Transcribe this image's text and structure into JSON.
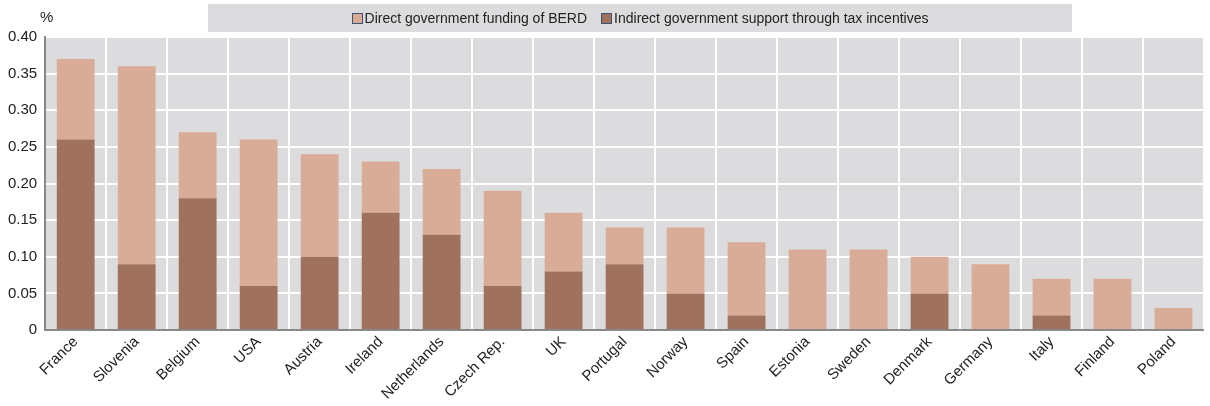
{
  "chart_data": {
    "type": "bar",
    "stacked": true,
    "ylabel": "%",
    "categories": [
      "France",
      "Slovenia",
      "Belgium",
      "USA",
      "Austria",
      "Ireland",
      "Netherlands",
      "Czech Rep.",
      "UK",
      "Portugal",
      "Norway",
      "Spain",
      "Estonia",
      "Sweden",
      "Denmark",
      "Germany",
      "Italy",
      "Finland",
      "Poland"
    ],
    "series": [
      {
        "name": "Indirect government support through tax incentives",
        "color": "#a0725e",
        "values": [
          0.26,
          0.09,
          0.18,
          0.06,
          0.1,
          0.16,
          0.13,
          0.06,
          0.08,
          0.09,
          0.05,
          0.02,
          0,
          0,
          0.05,
          0,
          0.02,
          0,
          0
        ]
      },
      {
        "name": "Direct government funding of BERD",
        "color": "#d9ac98",
        "values": [
          0.11,
          0.27,
          0.09,
          0.2,
          0.14,
          0.07,
          0.09,
          0.13,
          0.08,
          0.05,
          0.09,
          0.1,
          0.11,
          0.11,
          0.05,
          0.09,
          0.05,
          0.07,
          0.03
        ]
      }
    ],
    "ylim": [
      0,
      0.4
    ],
    "yticks": [
      {
        "value": 0,
        "label": "0"
      },
      {
        "value": 0.05,
        "label": "0.05"
      },
      {
        "value": 0.1,
        "label": "0.10"
      },
      {
        "value": 0.15,
        "label": "0.15"
      },
      {
        "value": 0.2,
        "label": "0.20"
      },
      {
        "value": 0.25,
        "label": "0.25"
      },
      {
        "value": 0.3,
        "label": "0.30"
      },
      {
        "value": 0.35,
        "label": "0.35"
      },
      {
        "value": 0.4,
        "label": "0.40"
      }
    ],
    "grid": true,
    "legend": "top"
  }
}
